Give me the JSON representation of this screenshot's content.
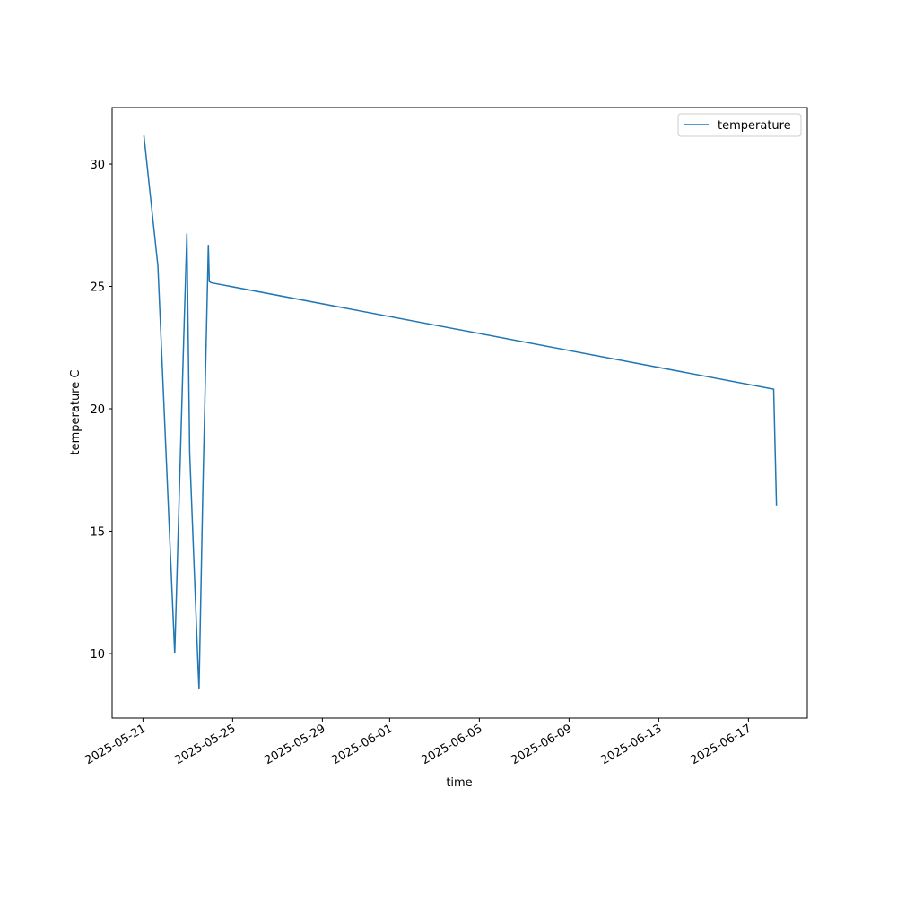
{
  "chart_data": {
    "type": "line",
    "x_label": "time",
    "y_label": "temperature C",
    "x": [
      "2025-05-21T01:00",
      "2025-05-21T16:00",
      "2025-05-22T10:00",
      "2025-05-22T19:00",
      "2025-05-22T23:00",
      "2025-05-23T02:00",
      "2025-05-23T11:00",
      "2025-05-23T12:00",
      "2025-05-23T16:00",
      "2025-05-23T22:00",
      "2025-05-23T23:00",
      "2025-05-24T01:00",
      "2025-06-18T03:00",
      "2025-06-18T06:00"
    ],
    "series": [
      {
        "name": "temperature",
        "color": "#1f77b4",
        "values": [
          31.17,
          25.84,
          10.0,
          22.05,
          27.16,
          18.2,
          9.4,
          8.53,
          16.5,
          26.7,
          25.2,
          25.15,
          20.8,
          16.05
        ]
      }
    ],
    "xlim": [
      "2025-05-19T15:00",
      "2025-06-19T15:00"
    ],
    "xticks": [
      "2025-05-21",
      "2025-05-25",
      "2025-05-29",
      "2025-06-01",
      "2025-06-05",
      "2025-06-09",
      "2025-06-13",
      "2025-06-17"
    ],
    "ylim": [
      7.36,
      32.31
    ],
    "yticks": [
      10,
      15,
      20,
      25,
      30
    ],
    "legend": "upper right",
    "grid": false
  }
}
